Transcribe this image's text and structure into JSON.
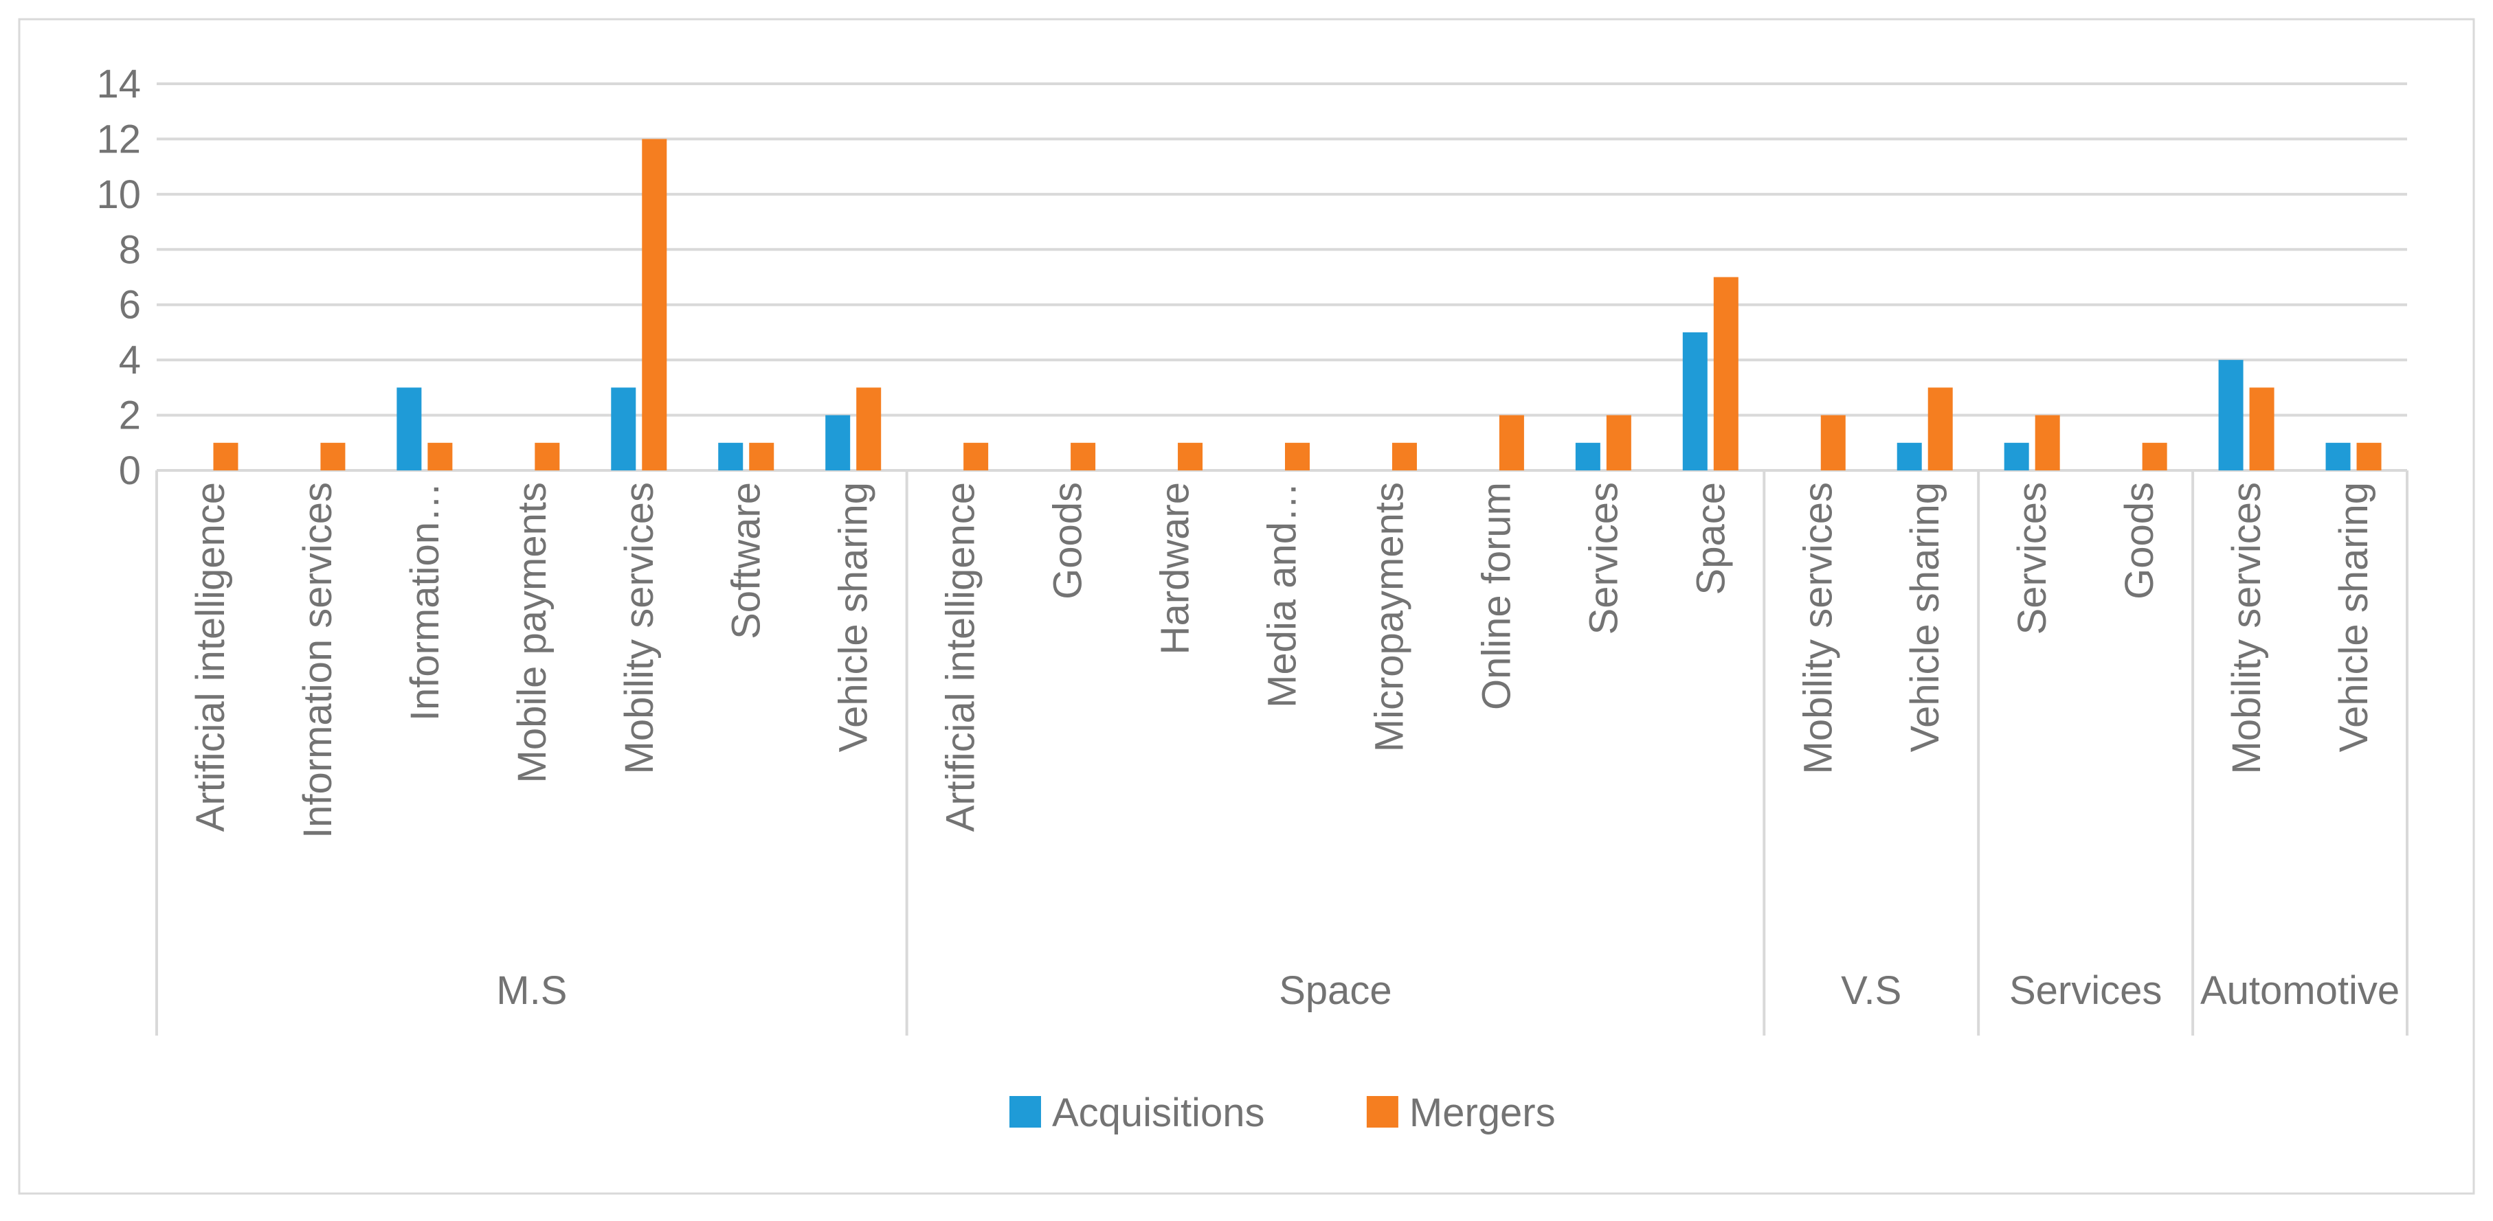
{
  "chart_data": {
    "type": "bar",
    "title": "",
    "xlabel": "",
    "ylabel": "",
    "ylim": [
      0,
      14
    ],
    "yticks": [
      0,
      2,
      4,
      6,
      8,
      10,
      12,
      14
    ],
    "grid": true,
    "legend_position": "bottom",
    "series_names": [
      "Acquisitions",
      "Mergers"
    ],
    "groups": [
      {
        "label": "M.S",
        "categories": [
          "Artificial intelligence",
          "Information services",
          "Information…",
          "Mobile payments",
          "Mobility services",
          "Software",
          "Vehicle sharing"
        ],
        "series": {
          "Acquisitions": [
            0,
            0,
            3,
            0,
            3,
            1,
            2
          ],
          "Mergers": [
            1,
            1,
            1,
            1,
            12,
            1,
            3
          ]
        }
      },
      {
        "label": "Space",
        "categories": [
          "Artificial intelligence",
          "Goods",
          "Hardware",
          "Media and…",
          "Micropayments",
          "Online forum",
          "Services",
          "Space"
        ],
        "series": {
          "Acquisitions": [
            0,
            0,
            0,
            0,
            0,
            0,
            1,
            5
          ],
          "Mergers": [
            1,
            1,
            1,
            1,
            1,
            2,
            2,
            7
          ]
        }
      },
      {
        "label": "V.S",
        "categories": [
          "Mobility services",
          "Vehicle sharing"
        ],
        "series": {
          "Acquisitions": [
            0,
            1
          ],
          "Mergers": [
            2,
            3
          ]
        }
      },
      {
        "label": "Services",
        "categories": [
          "Services",
          "Goods"
        ],
        "series": {
          "Acquisitions": [
            1,
            0
          ],
          "Mergers": [
            2,
            1
          ]
        }
      },
      {
        "label": "Automotive",
        "categories": [
          "Mobility services",
          "Vehicle sharing"
        ],
        "series": {
          "Acquisitions": [
            4,
            1
          ],
          "Mergers": [
            3,
            1
          ]
        }
      }
    ],
    "legend": [
      "Acquisitions",
      "Mergers"
    ],
    "colors": {
      "Acquisitions": "#1F9BD7",
      "Mergers": "#F57E20",
      "gridline": "#D9D9D9",
      "axis_line": "#D9D9D9",
      "panel_line": "#D9D9D9",
      "border": "#D9D9D9",
      "text": "#737373",
      "background": "#FFFFFF"
    }
  }
}
